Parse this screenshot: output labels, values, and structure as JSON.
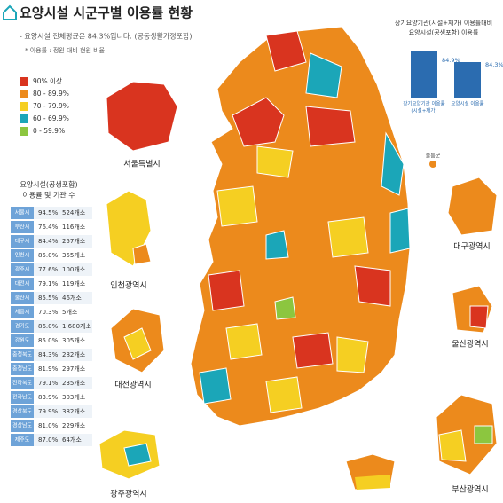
{
  "header": {
    "title": "요양시설 시군구별 이용률 현황",
    "subtitle": "- 요양시설 전체평균은 84.3%입니다. (공동생활가정포함)",
    "note": "* 이용률 : 정원 대비 현원 비율"
  },
  "legend": [
    {
      "label": "90% 이상",
      "color": "#d9341f"
    },
    {
      "label": "80 - 89.9%",
      "color": "#ec8a1c"
    },
    {
      "label": "70 - 79.9%",
      "color": "#f5cf22"
    },
    {
      "label": "60 - 69.9%",
      "color": "#1ba6b8"
    },
    {
      "label": "0 - 59.9%",
      "color": "#8cc63f"
    }
  ],
  "table": {
    "title": [
      "요양시설(공생포함)",
      "이용률 및 기관 수"
    ],
    "rows": [
      [
        "서울시",
        "94.5%",
        "524개소"
      ],
      [
        "부산시",
        "76.4%",
        "116개소"
      ],
      [
        "대구시",
        "84.4%",
        "257개소"
      ],
      [
        "인천시",
        "85.0%",
        "355개소"
      ],
      [
        "광주시",
        "77.6%",
        "100개소"
      ],
      [
        "대전시",
        "79.1%",
        "119개소"
      ],
      [
        "울산시",
        "85.5%",
        "46개소"
      ],
      [
        "세종시",
        "70.3%",
        "5개소"
      ],
      [
        "경기도",
        "86.0%",
        "1,680개소"
      ],
      [
        "강원도",
        "85.0%",
        "305개소"
      ],
      [
        "충청북도",
        "84.3%",
        "282개소"
      ],
      [
        "충청남도",
        "81.9%",
        "297개소"
      ],
      [
        "전라북도",
        "79.1%",
        "235개소"
      ],
      [
        "전라남도",
        "83.9%",
        "303개소"
      ],
      [
        "경상북도",
        "79.9%",
        "382개소"
      ],
      [
        "경상남도",
        "81.0%",
        "229개소"
      ],
      [
        "제주도",
        "87.0%",
        "64개소"
      ]
    ]
  },
  "comparison": {
    "title": [
      "장기요양기관(시설+재가) 이용률대비",
      "요양시설(공생포함) 이용률"
    ],
    "items": [
      {
        "value": "84.9%",
        "label": [
          "장기요양기관 이용률",
          "(시설+재가)"
        ]
      },
      {
        "value": "84.3%",
        "label": [
          "요양시설 이용률"
        ]
      }
    ]
  },
  "insets": [
    "서울특별시",
    "인천광역시",
    "대전광역시",
    "광주광역시",
    "대구광역시",
    "울산광역시",
    "부산광역시"
  ],
  "map_labels": [
    "울릉군"
  ]
}
